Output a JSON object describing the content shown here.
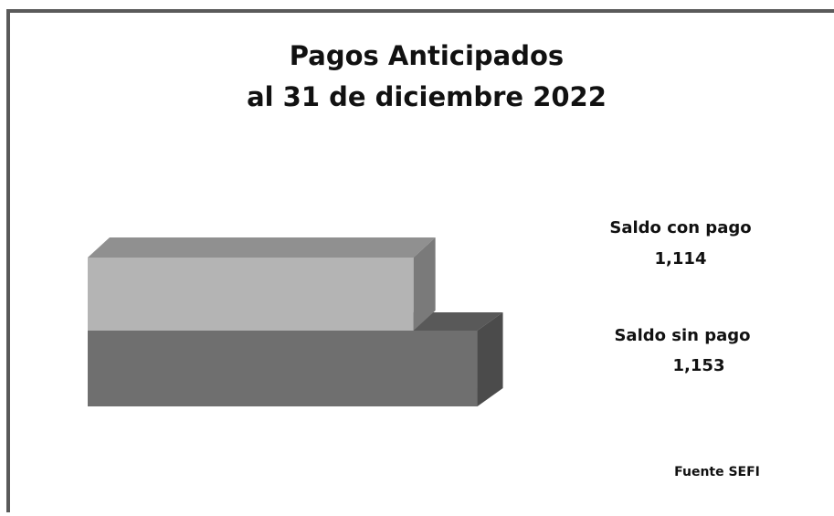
{
  "chart_data": {
    "type": "bar3d_horizontal",
    "title_lines": [
      "Pagos Anticipados",
      "al 31 de diciembre 2022"
    ],
    "categories": [
      "Saldo con pago",
      "Saldo sin pago"
    ],
    "values": [
      1114,
      1153
    ],
    "value_labels": [
      "1,114",
      "1,153"
    ],
    "colors": [
      "#b4b4b4",
      "#6f6f6f"
    ],
    "xlim": [
      915,
      1170
    ],
    "source": "Fuente SEFI"
  }
}
